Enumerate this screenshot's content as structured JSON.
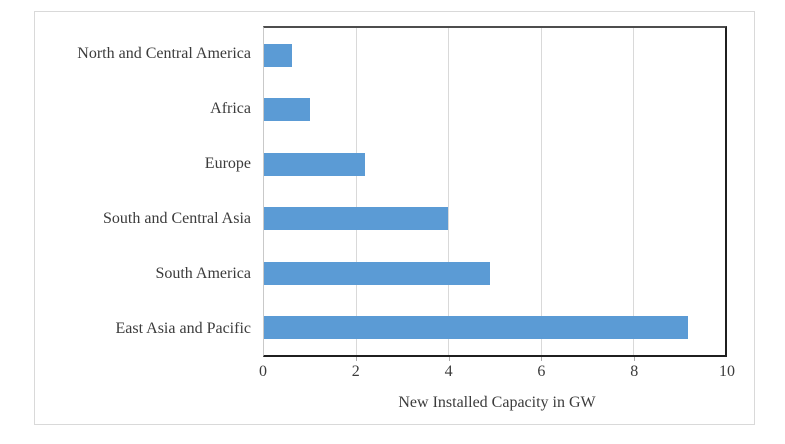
{
  "window": {
    "background": "#ffffff",
    "frame_border_color": "#d9d9d9"
  },
  "chart_data": {
    "type": "bar",
    "orientation": "horizontal",
    "title": "",
    "xlabel": "New Installed Capacity in GW",
    "ylabel": "",
    "categories": [
      "North and Central America",
      "Africa",
      "Europe",
      "South and Central Asia",
      "South America",
      "East Asia and Pacific"
    ],
    "values": [
      0.6,
      1.0,
      2.2,
      4.0,
      4.9,
      9.2
    ],
    "xlim": [
      0,
      10
    ],
    "xticks": [
      0,
      2,
      4,
      6,
      8,
      10
    ],
    "grid": true,
    "legend": false,
    "bar_color": "#5B9BD5",
    "gridline_color": "#d9d9d9",
    "axis_text_color": "#3b3b3b"
  }
}
